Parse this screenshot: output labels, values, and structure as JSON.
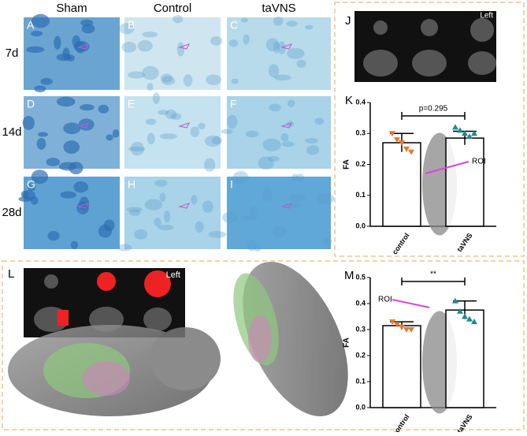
{
  "histology": {
    "columns": [
      "Sham",
      "Control",
      "taVNS"
    ],
    "rows": [
      "7d",
      "14d",
      "28d"
    ],
    "panels": [
      "A",
      "B",
      "C",
      "D",
      "E",
      "F",
      "G",
      "H",
      "I"
    ]
  },
  "panel_j": {
    "label": "J",
    "annotation": "Left"
  },
  "panel_l": {
    "label": "L",
    "annotation": "Left"
  },
  "chart_data": [
    {
      "type": "bar",
      "label": "K",
      "y_label": "FA",
      "categories": [
        "control",
        "taVNS"
      ],
      "values": [
        0.27,
        0.285
      ],
      "errors": [
        0.03,
        0.022
      ],
      "color": "#ffffff",
      "points": [
        [
          0.3,
          0.28,
          0.27,
          0.25,
          0.24
        ],
        [
          0.32,
          0.31,
          0.3,
          0.29,
          0.3
        ]
      ],
      "point_colors": [
        "#e8782e",
        "#238a8a"
      ],
      "ylim": [
        0,
        0.4
      ],
      "yticks": [
        {
          "value": 0,
          "label": "0.0"
        },
        0.1,
        0.2,
        0.3,
        0.4
      ],
      "significance": "p=0.295",
      "annotation": "ROI"
    },
    {
      "type": "bar",
      "label": "M",
      "y_label": "FA",
      "categories": [
        "control",
        "taVNS"
      ],
      "values": [
        0.315,
        0.375
      ],
      "errors": [
        0.015,
        0.035
      ],
      "color": "#ffffff",
      "points": [
        [
          0.33,
          0.32,
          0.31,
          0.3,
          0.3
        ],
        [
          0.41,
          0.37,
          0.35,
          0.34,
          0.33
        ]
      ],
      "point_colors": [
        "#e8782e",
        "#238a8a"
      ],
      "ylim": [
        0,
        0.5
      ],
      "yticks": [
        {
          "value": 0,
          "label": "0.0"
        },
        0.1,
        0.2,
        0.3,
        0.4,
        0.5
      ],
      "significance": "**",
      "annotation": "ROI"
    }
  ]
}
